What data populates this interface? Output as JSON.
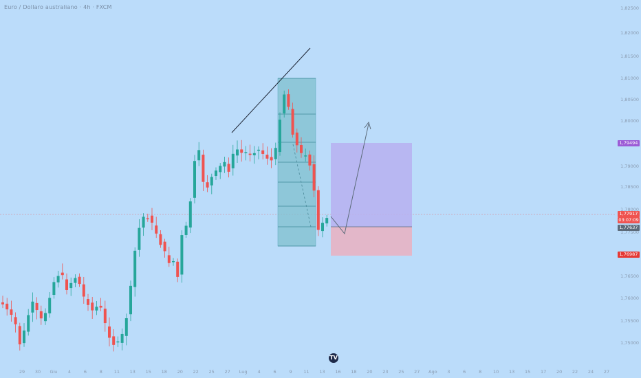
{
  "header": {
    "title": "Euro / Dollaro australiano · 4h · FXCM"
  },
  "colors": {
    "background": "#bbdcfa",
    "bull": "#26a69a",
    "bear": "#ef5350",
    "target_zone": "#b7b0f0",
    "stop_zone": "#e8b3c3",
    "fib_box": "#7fc1cf",
    "badge_target": "#9c5cd6",
    "badge_current": "#ef5350",
    "badge_entry": "#5c6b7a",
    "badge_stop": "#e53935"
  },
  "price_axis": {
    "ticks": [
      "1,82500",
      "1,82000",
      "1,81500",
      "1,81000",
      "1,80500",
      "1,80000",
      "1,79500",
      "1,79000",
      "1,78500",
      "1,78000",
      "1,77500",
      "1,77000",
      "1,76500",
      "1,76000",
      "1,75500",
      "1,75000"
    ],
    "badges": {
      "target": "1,79494",
      "current_price": "1,77917",
      "countdown": "03:07:09",
      "entry": "1,77637",
      "stop": "1,76987"
    }
  },
  "time_axis": {
    "labels": [
      "29",
      "30",
      "Giu",
      "4",
      "6",
      "8",
      "11",
      "13",
      "15",
      "18",
      "20",
      "22",
      "25",
      "27",
      "Lug",
      "4",
      "6",
      "9",
      "11",
      "13",
      "16",
      "18",
      "20",
      "23",
      "25",
      "27",
      "Ago",
      "3",
      "6",
      "8",
      "10",
      "13",
      "15",
      "17",
      "20",
      "22",
      "24",
      "27"
    ]
  },
  "logo": {
    "icon": "tradingview-logo",
    "text": "TV"
  }
}
